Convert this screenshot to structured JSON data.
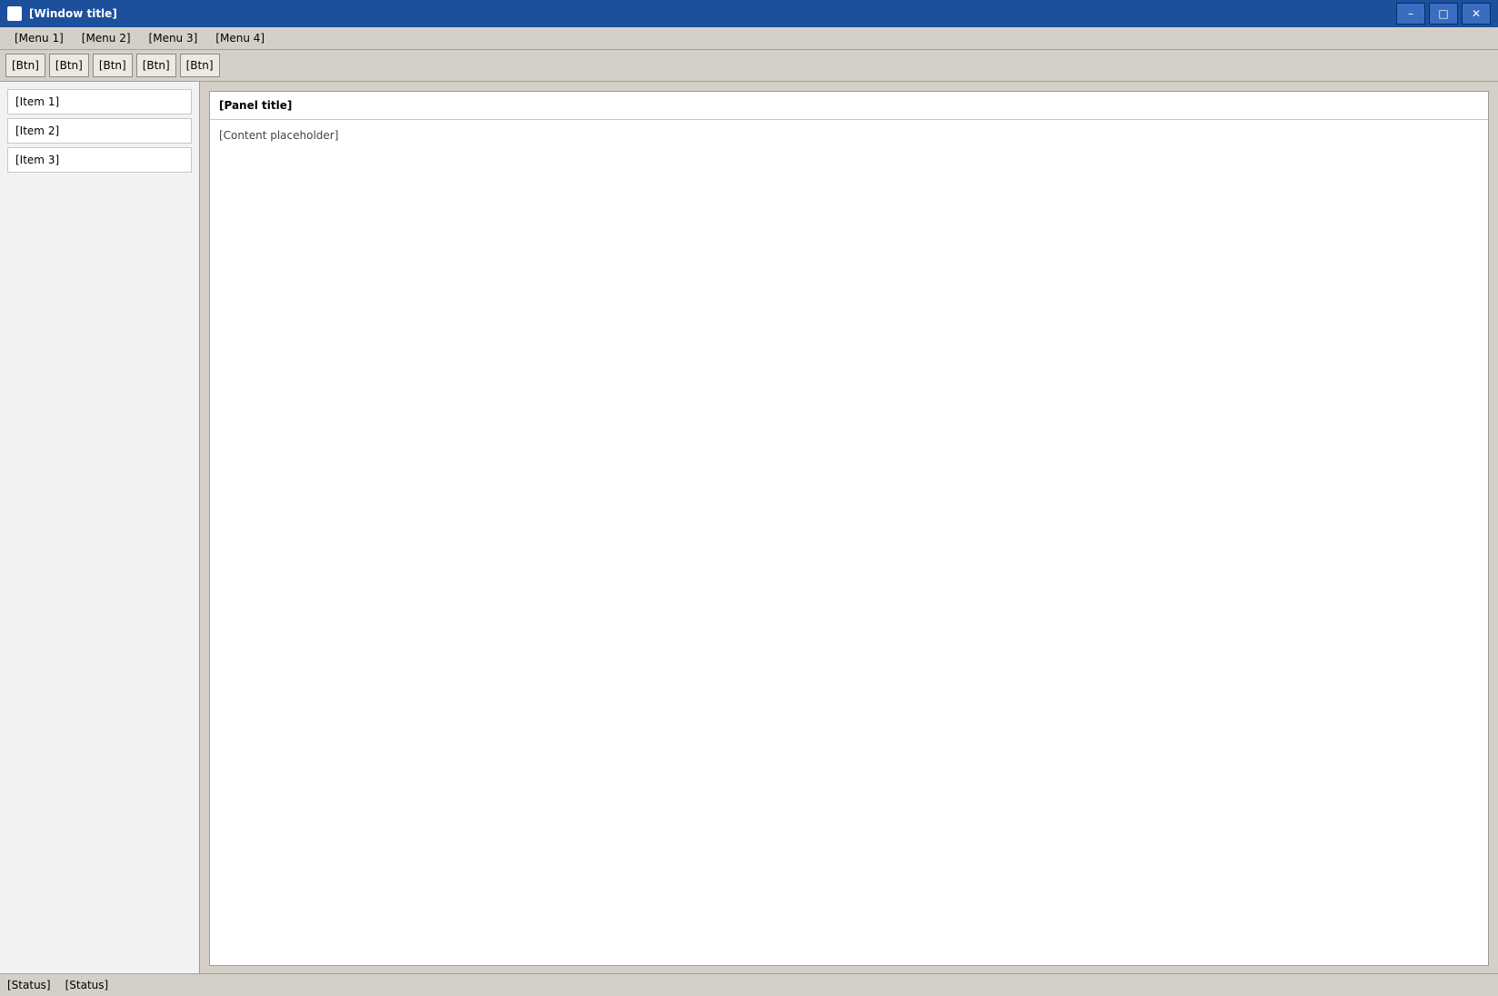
{
  "window": {
    "title": "[Window title]",
    "icon": "app-icon",
    "controls": [
      "–",
      "□",
      "✕"
    ]
  },
  "menubar": {
    "items": [
      "[Menu 1]",
      "[Menu 2]",
      "[Menu 3]",
      "[Menu 4]"
    ]
  },
  "toolbar": {
    "buttons": [
      "[Btn]",
      "[Btn]",
      "[Btn]",
      "[Btn]",
      "[Btn]"
    ]
  },
  "sidebar": {
    "items": [
      "[Item 1]",
      "[Item 2]",
      "[Item 3]"
    ]
  },
  "content": {
    "panel_title": "[Panel title]",
    "body_text": "[Content placeholder]"
  },
  "status": {
    "left": "[Status]",
    "right": "[Status]"
  }
}
